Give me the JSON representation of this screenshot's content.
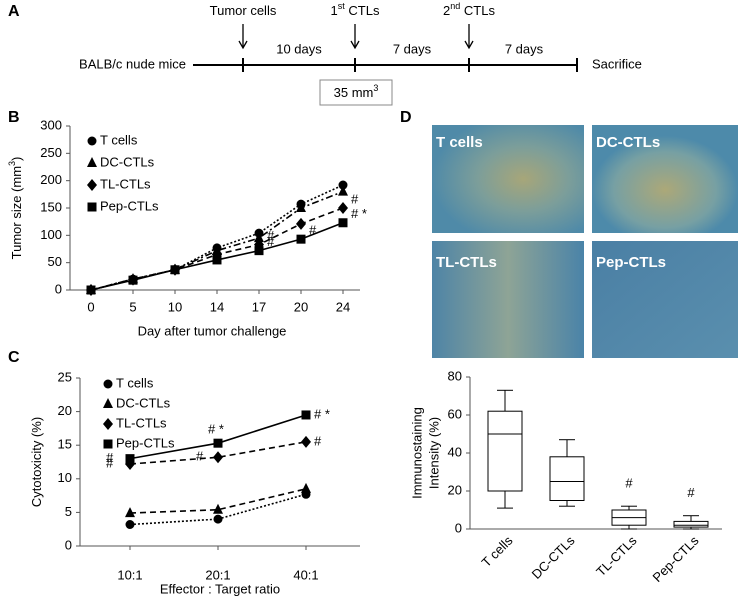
{
  "panel_labels": [
    "A",
    "B",
    "C",
    "D"
  ],
  "timeline": {
    "subject": "BALB/c nude mice",
    "events": [
      [
        "Tumor cells"
      ],
      [
        "1",
        "st",
        " CTLs"
      ],
      [
        "2",
        "nd",
        " CTLs"
      ]
    ],
    "intervals": [
      "10 days",
      "7 days",
      "7 days"
    ],
    "end": "Sacrifice",
    "size": [
      "35 mm",
      "3"
    ]
  },
  "images": [
    {
      "label": "T cells"
    },
    {
      "label": "DC-CTLs"
    },
    {
      "label": "TL-CTLs"
    },
    {
      "label": "Pep-CTLs"
    }
  ],
  "chart_data": [
    {
      "type": "line",
      "x_label": "Day after tumor challenge",
      "y_label": [
        "Tumor size (mm",
        "3",
        ")"
      ],
      "categories": [
        "0",
        "5",
        "10",
        "14",
        "17",
        "20",
        "24"
      ],
      "ylim": [
        0,
        300
      ],
      "yticks": [
        0,
        50,
        100,
        150,
        200,
        250,
        300
      ],
      "series": [
        {
          "name": "T cells",
          "color": "#000000",
          "marker": "circle",
          "dash": "dotted",
          "values": [
            0,
            20,
            37,
            77,
            104,
            157,
            192
          ]
        },
        {
          "name": "DC-CTLs",
          "color": "#000000",
          "marker": "triangle",
          "dash": "dash-dot",
          "values": [
            0,
            20,
            37,
            72,
            95,
            150,
            180
          ]
        },
        {
          "name": "TL-CTLs",
          "color": "#000000",
          "marker": "diamond",
          "dash": "dashed",
          "values": [
            0,
            19,
            37,
            65,
            83,
            121,
            150
          ],
          "point_labels": [
            null,
            null,
            null,
            null,
            "#",
            null,
            "#"
          ]
        },
        {
          "name": "Pep-CTLs",
          "color": "#000000",
          "marker": "square",
          "dash": "solid",
          "values": [
            0,
            18,
            37,
            55,
            72,
            93,
            123
          ],
          "point_labels": [
            null,
            null,
            null,
            null,
            "#",
            "#",
            "# *"
          ]
        }
      ]
    },
    {
      "type": "line",
      "x_label": "Effector : Target ratio",
      "y_label": [
        "Cytotoxicity (%)"
      ],
      "categories": [
        "10:1",
        "20:1",
        "40:1"
      ],
      "ylim": [
        0,
        25
      ],
      "yticks": [
        0,
        5,
        10,
        15,
        20,
        25
      ],
      "series": [
        {
          "name": "T cells",
          "color": "#000000",
          "marker": "circle",
          "dash": "dotted",
          "values": [
            3.2,
            4.0,
            7.7
          ]
        },
        {
          "name": "DC-CTLs",
          "color": "#000000",
          "marker": "triangle",
          "dash": "dashed",
          "values": [
            4.9,
            5.4,
            8.5
          ]
        },
        {
          "name": "TL-CTLs",
          "color": "#000000",
          "marker": "diamond",
          "dash": "dashed",
          "values": [
            12.2,
            13.2,
            15.5
          ],
          "point_labels": [
            "#",
            "#",
            "#"
          ]
        },
        {
          "name": "Pep-CTLs",
          "color": "#000000",
          "marker": "square",
          "dash": "solid",
          "values": [
            13.0,
            15.3,
            19.5
          ],
          "point_labels": [
            "#",
            "# *",
            "# *"
          ]
        }
      ]
    },
    {
      "type": "box",
      "y_label": [
        "Immunostaining",
        "Intensity (%)"
      ],
      "categories": [
        "T cells",
        "DC-CTLs",
        "TL-CTLs",
        "Pep-CTLs"
      ],
      "ylim": [
        0,
        80
      ],
      "yticks": [
        0,
        20,
        40,
        60,
        80
      ],
      "boxes": [
        {
          "min": 11,
          "q1": 20,
          "median": 50,
          "q3": 62,
          "max": 73
        },
        {
          "min": 12,
          "q1": 15,
          "median": 25,
          "q3": 38,
          "max": 47
        },
        {
          "min": 0,
          "q1": 2,
          "median": 6,
          "q3": 10,
          "max": 12
        },
        {
          "min": 0,
          "q1": 1,
          "median": 2,
          "q3": 4,
          "max": 7
        }
      ],
      "annotations": [
        null,
        null,
        "#",
        "#"
      ]
    }
  ]
}
